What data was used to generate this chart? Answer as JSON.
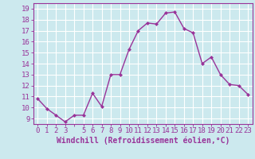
{
  "x": [
    0,
    1,
    2,
    3,
    4,
    5,
    6,
    7,
    8,
    9,
    10,
    11,
    12,
    13,
    14,
    15,
    16,
    17,
    18,
    19,
    20,
    21,
    22,
    23
  ],
  "y": [
    10.8,
    9.9,
    9.3,
    8.7,
    9.3,
    9.3,
    11.3,
    10.1,
    13.0,
    13.0,
    15.3,
    17.0,
    17.7,
    17.6,
    18.6,
    18.7,
    17.2,
    16.8,
    14.0,
    14.6,
    13.0,
    12.1,
    12.0,
    11.2
  ],
  "line_color": "#993399",
  "marker": "D",
  "marker_size": 2.0,
  "bg_color": "#cce9ee",
  "grid_color": "#ffffff",
  "xlabel": "Windchill (Refroidissement éolien,°C)",
  "xtick_labels": [
    "0",
    "1",
    "2",
    "3",
    "",
    "5",
    "6",
    "7",
    "8",
    "9",
    "10",
    "11",
    "12",
    "13",
    "14",
    "15",
    "16",
    "17",
    "18",
    "19",
    "20",
    "21",
    "22",
    "23"
  ],
  "ylabel_ticks": [
    9,
    10,
    11,
    12,
    13,
    14,
    15,
    16,
    17,
    18,
    19
  ],
  "ylim": [
    8.5,
    19.5
  ],
  "xlim": [
    -0.5,
    23.5
  ],
  "xlabel_fontsize": 7,
  "tick_fontsize": 6.5,
  "line_width": 1.0
}
